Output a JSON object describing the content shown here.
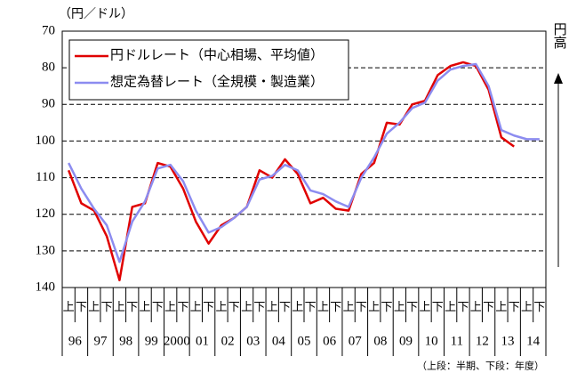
{
  "chart_data": {
    "type": "line",
    "y_unit": "（円／ドル）",
    "side_label": "円高",
    "note": "（上段：半期、下段：年度）",
    "categories": [
      "上",
      "下",
      "上",
      "下",
      "上",
      "下",
      "上",
      "下",
      "上",
      "下",
      "上",
      "下",
      "上",
      "下",
      "上",
      "下",
      "上",
      "下",
      "上",
      "下",
      "上",
      "下",
      "上",
      "下",
      "上",
      "下",
      "上",
      "下",
      "上",
      "下",
      "上",
      "下",
      "上",
      "下",
      "上",
      "下",
      "上",
      "下"
    ],
    "years": [
      "96",
      "97",
      "98",
      "99",
      "2000",
      "01",
      "02",
      "03",
      "04",
      "05",
      "06",
      "07",
      "08",
      "09",
      "10",
      "11",
      "12",
      "13",
      "14"
    ],
    "series": [
      {
        "name": "円ドルレート（中心相場、平均値）",
        "color": "#e00000",
        "values": [
          108,
          117,
          119,
          126,
          138,
          118,
          117,
          106,
          107,
          113,
          122,
          128,
          123,
          121,
          118,
          108,
          110,
          105,
          109,
          117,
          115.5,
          118.5,
          119,
          109,
          106,
          95,
          95.5,
          90,
          89,
          82,
          79.5,
          78.5,
          79.5,
          86,
          99,
          101.5,
          null,
          null
        ]
      },
      {
        "name": "想定為替レート（全規模・製造業）",
        "color": "#8c8cf0",
        "values": [
          106,
          113,
          118.5,
          123,
          133,
          122,
          116.5,
          107.5,
          106.5,
          111,
          119,
          125,
          123.5,
          121,
          118,
          110.5,
          109.5,
          106.5,
          108,
          113.5,
          114.5,
          116.5,
          118,
          110,
          104.5,
          98,
          95,
          91,
          89.5,
          83.5,
          80.5,
          79.5,
          79,
          85,
          97,
          98.5,
          99.5,
          99.5
        ]
      }
    ],
    "ylim": [
      70,
      140
    ],
    "yticks": [
      70,
      80,
      90,
      100,
      110,
      120,
      130,
      140
    ],
    "y_inverted": true,
    "grid": true
  }
}
